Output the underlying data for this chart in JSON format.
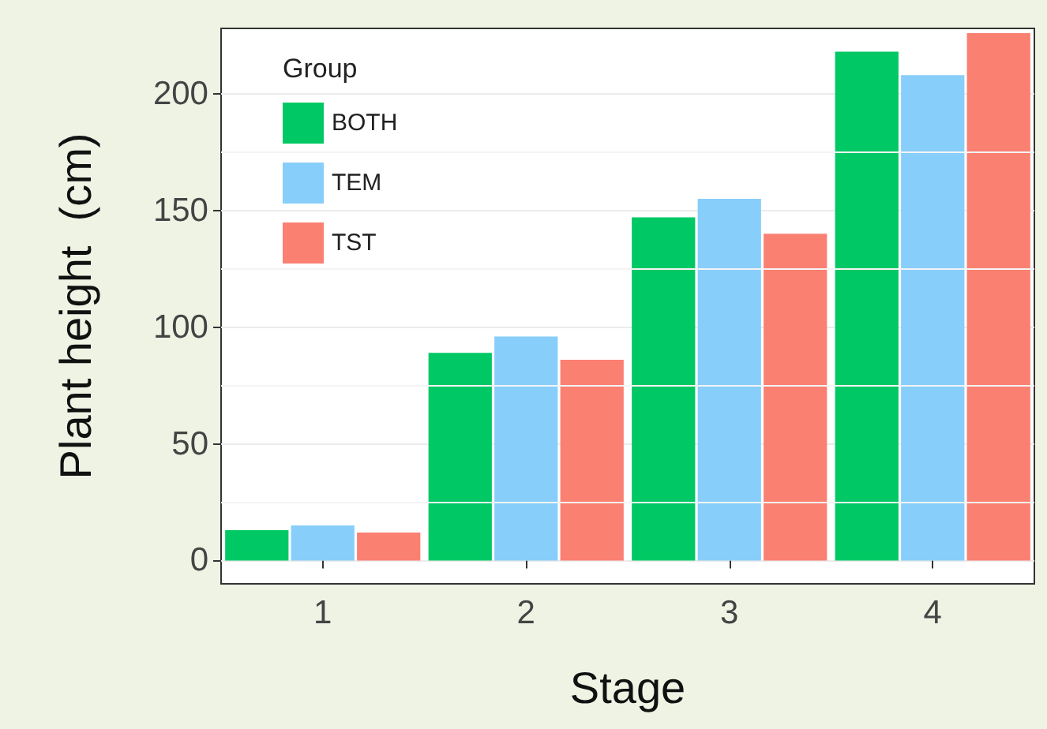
{
  "chart_data": {
    "type": "bar",
    "xlabel": "Stage",
    "ylabel": "Plant height  (cm)",
    "legend_title": "Group",
    "categories": [
      "1",
      "2",
      "3",
      "4"
    ],
    "series": [
      {
        "name": "BOTH",
        "color": "#00c864",
        "values": [
          13,
          89,
          147,
          218
        ]
      },
      {
        "name": "TEM",
        "color": "#87cefa",
        "values": [
          15,
          96,
          155,
          208
        ]
      },
      {
        "name": "TST",
        "color": "#fa8072",
        "values": [
          12,
          86,
          140,
          226
        ]
      }
    ],
    "ylim": [
      -10,
      228
    ],
    "yticks": [
      0,
      50,
      100,
      150,
      200
    ],
    "grid": "y",
    "legend": "top left"
  }
}
